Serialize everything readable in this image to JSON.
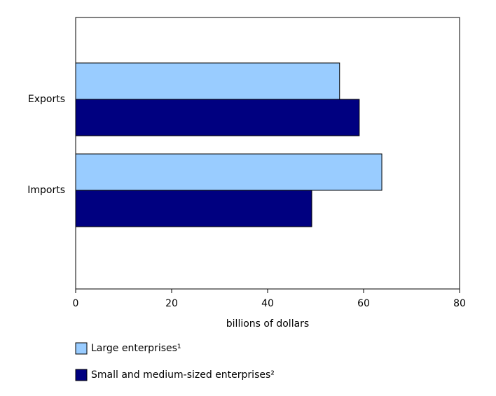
{
  "chart_data": {
    "type": "hbar",
    "categories": [
      "Exports",
      "Imports"
    ],
    "series": [
      {
        "name": "Large enterprises¹",
        "color": "#99ccff",
        "values": [
          55.0,
          63.8
        ]
      },
      {
        "name": "Small and medium-sized enterprises²",
        "color": "#000080",
        "values": [
          59.1,
          49.2
        ]
      }
    ],
    "x_label": "billions of dollars",
    "xlim": [
      0,
      80
    ],
    "xticks": [
      0,
      20,
      40,
      60,
      80
    ]
  }
}
